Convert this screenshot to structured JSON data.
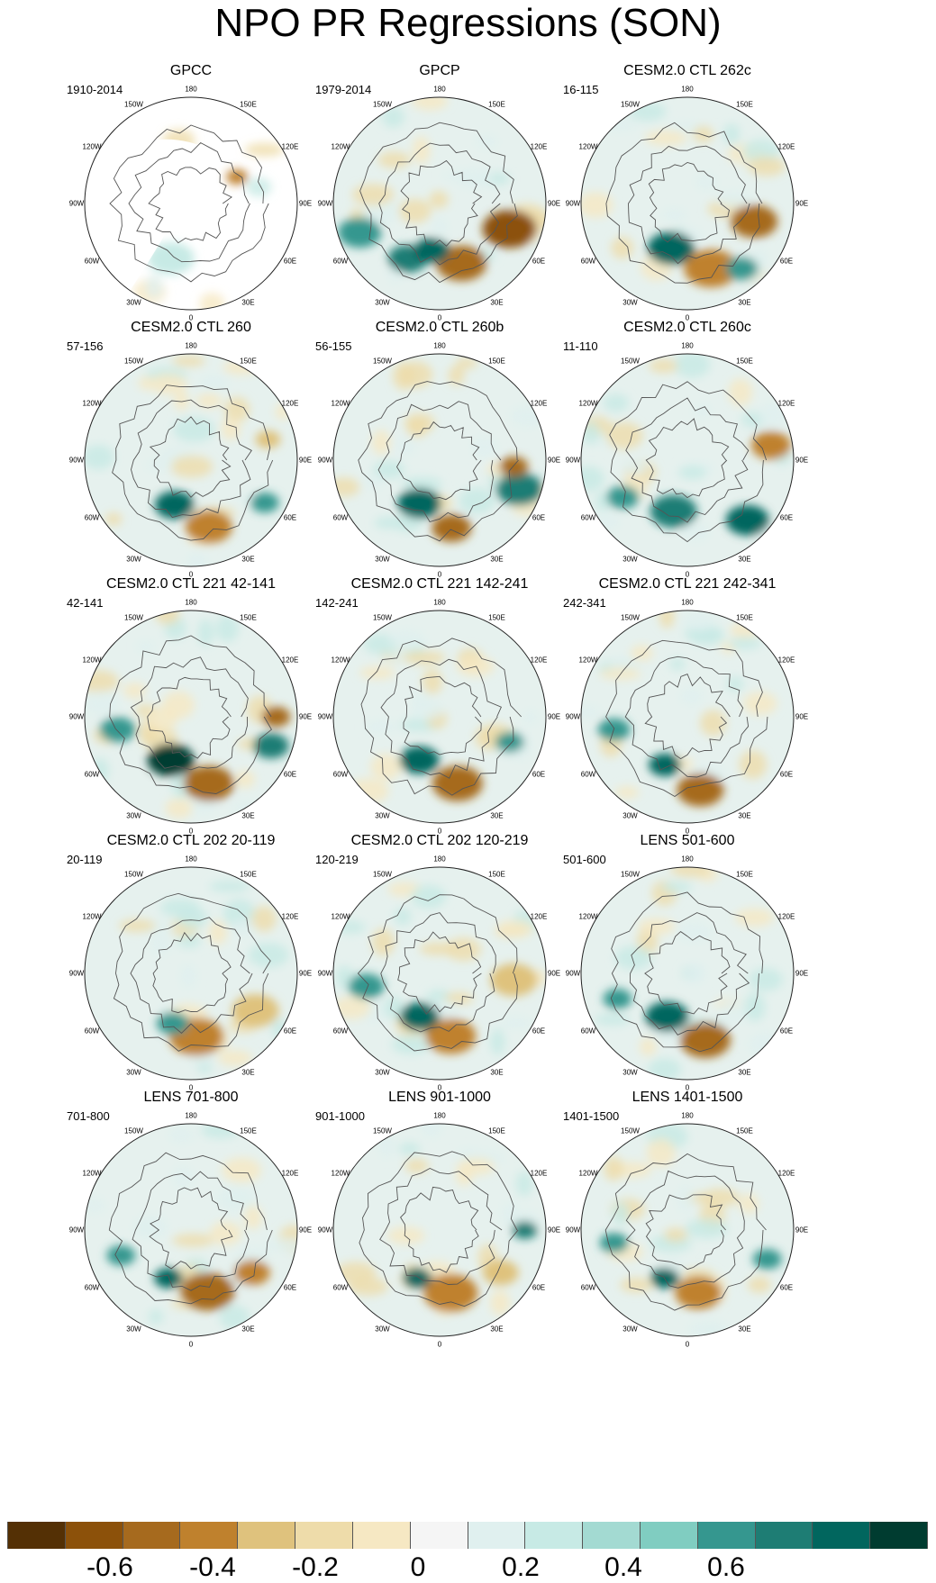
{
  "title": "NPO PR Regressions (SON)",
  "longitude_labels": [
    "180",
    "150E",
    "120E",
    "90E",
    "60E",
    "30E",
    "0",
    "30W",
    "60W",
    "90W",
    "120W",
    "150W"
  ],
  "panels": [
    {
      "title": "GPCC",
      "period": "1910-2014"
    },
    {
      "title": "GPCP",
      "period": "1979-2014"
    },
    {
      "title": "CESM2.0 CTL 262c",
      "period": "16-115"
    },
    {
      "title": "CESM2.0 CTL 260",
      "period": "57-156"
    },
    {
      "title": "CESM2.0 CTL 260b",
      "period": "56-155"
    },
    {
      "title": "CESM2.0 CTL 260c",
      "period": "11-110"
    },
    {
      "title": "CESM2.0 CTL 221 42-141",
      "period": "42-141"
    },
    {
      "title": "CESM2.0 CTL 221 142-241",
      "period": "142-241"
    },
    {
      "title": "CESM2.0 CTL 221 242-341",
      "period": "242-341"
    },
    {
      "title": "CESM2.0 CTL 202 20-119",
      "period": "20-119"
    },
    {
      "title": "CESM2.0 CTL 202 120-219",
      "period": "120-219"
    },
    {
      "title": "LENS 501-600",
      "period": "501-600"
    },
    {
      "title": "LENS 701-800",
      "period": "701-800"
    },
    {
      "title": "LENS 901-1000",
      "period": "901-1000"
    },
    {
      "title": "LENS 1401-1500",
      "period": "1401-1500"
    }
  ],
  "colorbar": {
    "colors": [
      "#543005",
      "#8c510a",
      "#a66a1e",
      "#bf812d",
      "#dfc27d",
      "#eedcaa",
      "#f6e8c3",
      "#f5f5f5",
      "#e0f0ef",
      "#c7eae5",
      "#a3dad2",
      "#80cdc1",
      "#35978f",
      "#1e7d74",
      "#01665e",
      "#003c30"
    ],
    "tick_labels": [
      "-0.6",
      "-0.4",
      "-0.2",
      "0",
      "0.2",
      "0.4",
      "0.6"
    ]
  }
}
